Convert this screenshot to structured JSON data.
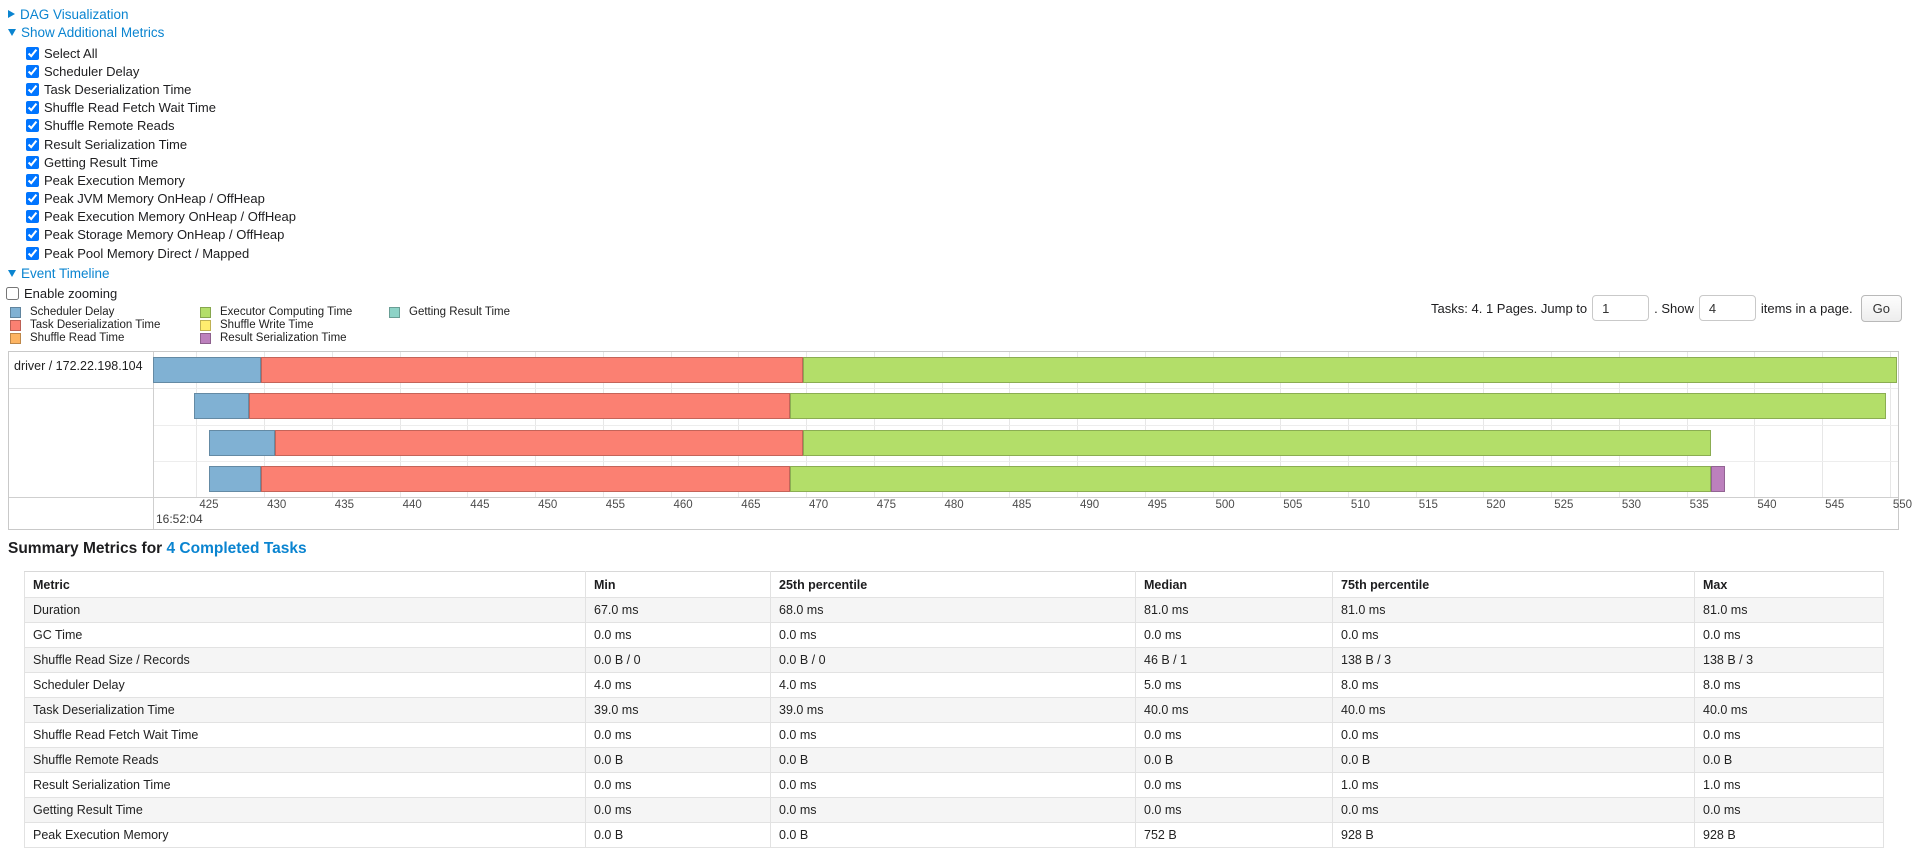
{
  "colors": {
    "link": "#0a84d0",
    "scheduler_delay": "#80B1D3",
    "task_deserialization": "#FB8072",
    "shuffle_read": "#FDB462",
    "executor_computing": "#B3DE69",
    "shuffle_write": "#FFED6F",
    "result_serialization": "#BC80BD",
    "getting_result": "#8DD3C7"
  },
  "controls": {
    "dag": {
      "label": "DAG Visualization",
      "expanded": false
    },
    "metrics": {
      "label": "Show Additional Metrics",
      "expanded": true,
      "checkboxes": [
        {
          "label": "Select All",
          "checked": true
        },
        {
          "label": "Scheduler Delay",
          "checked": true
        },
        {
          "label": "Task Deserialization Time",
          "checked": true
        },
        {
          "label": "Shuffle Read Fetch Wait Time",
          "checked": true
        },
        {
          "label": "Shuffle Remote Reads",
          "checked": true
        },
        {
          "label": "Result Serialization Time",
          "checked": true
        },
        {
          "label": "Getting Result Time",
          "checked": true
        },
        {
          "label": "Peak Execution Memory",
          "checked": true
        },
        {
          "label": "Peak JVM Memory OnHeap / OffHeap",
          "checked": true
        },
        {
          "label": "Peak Execution Memory OnHeap / OffHeap",
          "checked": true
        },
        {
          "label": "Peak Storage Memory OnHeap / OffHeap",
          "checked": true
        },
        {
          "label": "Peak Pool Memory Direct / Mapped",
          "checked": true
        }
      ]
    },
    "timeline": {
      "label": "Event Timeline",
      "expanded": true,
      "enable_zooming": {
        "label": "Enable zooming",
        "checked": false
      }
    }
  },
  "pagination": {
    "text_before": "Tasks: 4. 1 Pages. Jump to",
    "jump_value": "1",
    "text_mid": ". Show",
    "show_value": "4",
    "text_after": "items in a page.",
    "go_label": "Go"
  },
  "chart_data": {
    "type": "bar",
    "subtype": "horizontal-stacked-timeline",
    "title": "Event Timeline",
    "group_label": "driver / 172.22.198.104",
    "legend": [
      {
        "key": "scheduler_delay",
        "label": "Scheduler Delay",
        "color": "#80B1D3"
      },
      {
        "key": "task_deserialization",
        "label": "Task Deserialization Time",
        "color": "#FB8072"
      },
      {
        "key": "shuffle_read",
        "label": "Shuffle Read Time",
        "color": "#FDB462"
      },
      {
        "key": "executor_computing",
        "label": "Executor Computing Time",
        "color": "#B3DE69"
      },
      {
        "key": "shuffle_write",
        "label": "Shuffle Write Time",
        "color": "#FFED6F"
      },
      {
        "key": "result_serialization",
        "label": "Result Serialization Time",
        "color": "#BC80BD"
      },
      {
        "key": "getting_result",
        "label": "Getting Result Time",
        "color": "#8DD3C7"
      }
    ],
    "x_axis": {
      "unit": "ms within second",
      "major_label": "16:52:04",
      "min": 421.8,
      "max": 550.6,
      "ticks": [
        425,
        430,
        435,
        440,
        445,
        450,
        455,
        460,
        465,
        470,
        475,
        480,
        485,
        490,
        495,
        500,
        505,
        510,
        515,
        520,
        525,
        530,
        535,
        540,
        545,
        550
      ]
    },
    "tasks": [
      {
        "segments": [
          {
            "type": "scheduler_delay",
            "start": 421.8,
            "end": 429.8
          },
          {
            "type": "task_deserialization",
            "start": 429.8,
            "end": 469.8
          },
          {
            "type": "executor_computing",
            "start": 469.8,
            "end": 550.5
          }
        ]
      },
      {
        "segments": [
          {
            "type": "scheduler_delay",
            "start": 424.8,
            "end": 428.9
          },
          {
            "type": "task_deserialization",
            "start": 428.9,
            "end": 468.8
          },
          {
            "type": "executor_computing",
            "start": 468.8,
            "end": 549.7
          }
        ]
      },
      {
        "segments": [
          {
            "type": "scheduler_delay",
            "start": 425.9,
            "end": 430.8
          },
          {
            "type": "task_deserialization",
            "start": 430.8,
            "end": 469.8
          },
          {
            "type": "executor_computing",
            "start": 469.8,
            "end": 536.8
          }
        ]
      },
      {
        "segments": [
          {
            "type": "scheduler_delay",
            "start": 425.9,
            "end": 429.8
          },
          {
            "type": "task_deserialization",
            "start": 429.8,
            "end": 468.8
          },
          {
            "type": "executor_computing",
            "start": 468.8,
            "end": 536.8
          },
          {
            "type": "result_serialization",
            "start": 536.8,
            "end": 537.8
          }
        ]
      }
    ]
  },
  "summary": {
    "heading_prefix": "Summary Metrics for ",
    "link_text": "4 Completed Tasks",
    "table": {
      "headers": [
        "Metric",
        "Min",
        "25th percentile",
        "Median",
        "75th percentile",
        "Max"
      ],
      "rows": [
        {
          "metric": "Duration",
          "values": [
            "67.0 ms",
            "68.0 ms",
            "81.0 ms",
            "81.0 ms",
            "81.0 ms"
          ]
        },
        {
          "metric": "GC Time",
          "values": [
            "0.0 ms",
            "0.0 ms",
            "0.0 ms",
            "0.0 ms",
            "0.0 ms"
          ]
        },
        {
          "metric": "Shuffle Read Size / Records",
          "values": [
            "0.0 B / 0",
            "0.0 B / 0",
            "46 B / 1",
            "138 B / 3",
            "138 B / 3"
          ]
        },
        {
          "metric": "Scheduler Delay",
          "values": [
            "4.0 ms",
            "4.0 ms",
            "5.0 ms",
            "8.0 ms",
            "8.0 ms"
          ]
        },
        {
          "metric": "Task Deserialization Time",
          "values": [
            "39.0 ms",
            "39.0 ms",
            "40.0 ms",
            "40.0 ms",
            "40.0 ms"
          ]
        },
        {
          "metric": "Shuffle Read Fetch Wait Time",
          "values": [
            "0.0 ms",
            "0.0 ms",
            "0.0 ms",
            "0.0 ms",
            "0.0 ms"
          ]
        },
        {
          "metric": "Shuffle Remote Reads",
          "values": [
            "0.0 B",
            "0.0 B",
            "0.0 B",
            "0.0 B",
            "0.0 B"
          ]
        },
        {
          "metric": "Result Serialization Time",
          "values": [
            "0.0 ms",
            "0.0 ms",
            "0.0 ms",
            "1.0 ms",
            "1.0 ms"
          ]
        },
        {
          "metric": "Getting Result Time",
          "values": [
            "0.0 ms",
            "0.0 ms",
            "0.0 ms",
            "0.0 ms",
            "0.0 ms"
          ]
        },
        {
          "metric": "Peak Execution Memory",
          "values": [
            "0.0 B",
            "0.0 B",
            "752 B",
            "928 B",
            "928 B"
          ]
        }
      ]
    }
  }
}
